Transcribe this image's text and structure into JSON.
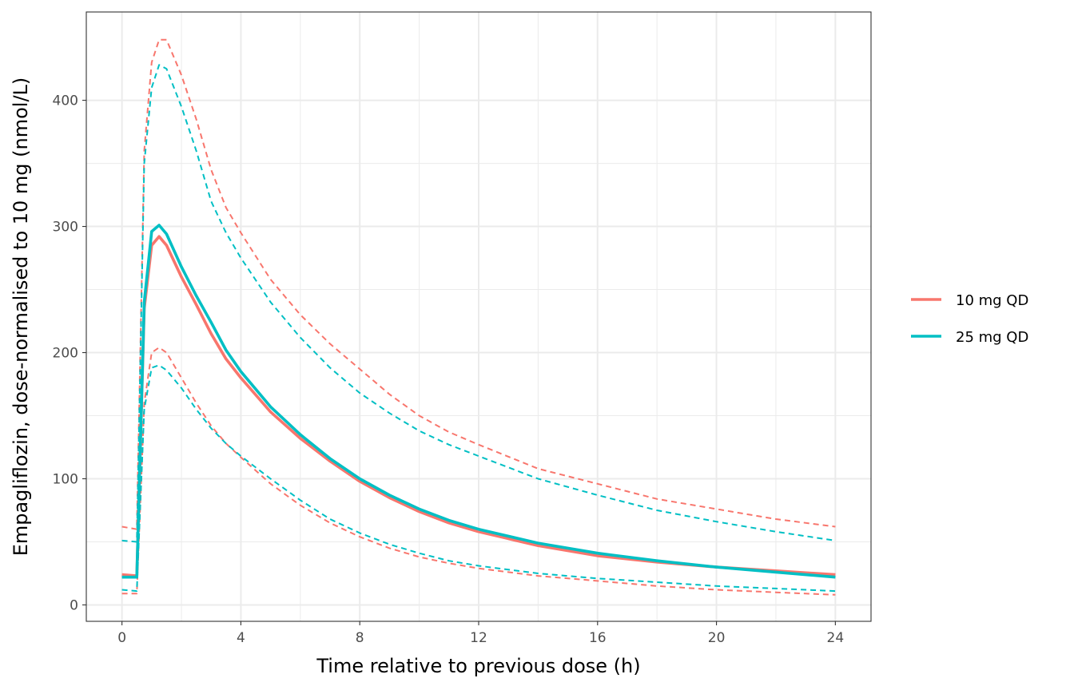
{
  "chart_data": {
    "type": "line",
    "title": "",
    "xlabel": "Time relative to previous dose (h)",
    "ylabel": "Empagliflozin, dose-normalised to 10 mg (nmol/L)",
    "xlim": [
      -1.2,
      25.2
    ],
    "ylim": [
      -13,
      470
    ],
    "x_ticks": [
      0,
      4,
      8,
      12,
      16,
      20,
      24
    ],
    "x_tick_labels": [
      "0",
      "4",
      "8",
      "12",
      "16",
      "20",
      "24"
    ],
    "y_ticks": [
      0,
      100,
      200,
      300,
      400
    ],
    "y_tick_labels": [
      "0",
      "100",
      "200",
      "300",
      "400"
    ],
    "grid": true,
    "legend_position": "right",
    "series": [
      {
        "name": "10 mg QD",
        "color": "#F8766D",
        "median": {
          "x": [
            0,
            0.5,
            0.75,
            1,
            1.25,
            1.5,
            2,
            2.5,
            3,
            3.5,
            4,
            5,
            6,
            7,
            8,
            9,
            10,
            11,
            12,
            14,
            16,
            18,
            20,
            22,
            24
          ],
          "y": [
            24,
            23,
            235,
            285,
            292,
            285,
            260,
            238,
            215,
            195,
            180,
            153,
            132,
            114,
            98,
            85,
            74,
            65,
            58,
            47,
            39,
            34,
            30,
            27,
            24
          ]
        },
        "upper": {
          "x": [
            0,
            0.5,
            0.75,
            1,
            1.25,
            1.5,
            2,
            2.5,
            3,
            3.5,
            4,
            5,
            6,
            7,
            8,
            9,
            10,
            11,
            12,
            14,
            16,
            18,
            20,
            22,
            24
          ],
          "y": [
            62,
            60,
            360,
            430,
            448,
            448,
            420,
            385,
            345,
            315,
            295,
            258,
            230,
            207,
            187,
            167,
            150,
            137,
            127,
            108,
            96,
            84,
            76,
            68,
            62
          ]
        },
        "lower": {
          "x": [
            0,
            0.5,
            0.75,
            1,
            1.25,
            1.5,
            2,
            2.5,
            3,
            3.5,
            4,
            5,
            6,
            7,
            8,
            9,
            10,
            11,
            12,
            14,
            16,
            18,
            20,
            22,
            24
          ],
          "y": [
            9,
            9,
            160,
            200,
            204,
            200,
            180,
            160,
            142,
            128,
            117,
            96,
            79,
            65,
            54,
            45,
            38,
            33,
            29,
            23,
            19,
            15,
            12,
            10,
            8
          ]
        }
      },
      {
        "name": "25 mg QD",
        "color": "#00BFC4",
        "median": {
          "x": [
            0,
            0.5,
            0.75,
            1,
            1.25,
            1.5,
            2,
            2.5,
            3,
            3.5,
            4,
            5,
            6,
            7,
            8,
            9,
            10,
            11,
            12,
            14,
            16,
            18,
            20,
            22,
            24
          ],
          "y": [
            22,
            22,
            240,
            296,
            301,
            294,
            268,
            245,
            224,
            202,
            185,
            157,
            135,
            116,
            100,
            87,
            76,
            67,
            60,
            49,
            41,
            35,
            30,
            26,
            22
          ]
        },
        "upper": {
          "x": [
            0,
            0.5,
            0.75,
            1,
            1.25,
            1.5,
            2,
            2.5,
            3,
            3.5,
            4,
            5,
            6,
            7,
            8,
            9,
            10,
            11,
            12,
            14,
            16,
            18,
            20,
            22,
            24
          ],
          "y": [
            51,
            50,
            350,
            410,
            428,
            425,
            395,
            360,
            320,
            295,
            275,
            240,
            212,
            188,
            168,
            152,
            138,
            127,
            118,
            100,
            87,
            75,
            66,
            58,
            51
          ]
        },
        "lower": {
          "x": [
            0,
            0.5,
            0.75,
            1,
            1.25,
            1.5,
            2,
            2.5,
            3,
            3.5,
            4,
            5,
            6,
            7,
            8,
            9,
            10,
            11,
            12,
            14,
            16,
            18,
            20,
            22,
            24
          ],
          "y": [
            12,
            11,
            155,
            188,
            190,
            186,
            172,
            155,
            140,
            128,
            118,
            100,
            83,
            68,
            57,
            48,
            41,
            35,
            31,
            25,
            21,
            18,
            15,
            13,
            11
          ]
        }
      }
    ]
  }
}
